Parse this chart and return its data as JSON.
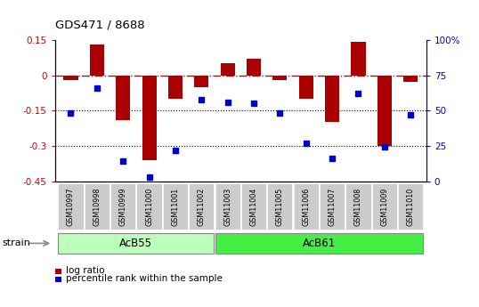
{
  "title": "GDS471 / 8688",
  "samples": [
    "GSM10997",
    "GSM10998",
    "GSM10999",
    "GSM11000",
    "GSM11001",
    "GSM11002",
    "GSM11003",
    "GSM11004",
    "GSM11005",
    "GSM11006",
    "GSM11007",
    "GSM11008",
    "GSM11009",
    "GSM11010"
  ],
  "log_ratio": [
    -0.02,
    0.13,
    -0.19,
    -0.36,
    -0.1,
    -0.05,
    0.05,
    0.07,
    -0.02,
    -0.1,
    -0.2,
    0.14,
    -0.3,
    -0.03
  ],
  "percentile": [
    48,
    66,
    14,
    3,
    22,
    58,
    56,
    55,
    48,
    27,
    16,
    62,
    24,
    47
  ],
  "ylim_left": [
    -0.45,
    0.15
  ],
  "ylim_right": [
    0,
    100
  ],
  "group1_label": "AcB55",
  "group1_count": 6,
  "group2_label": "AcB61",
  "group2_count": 8,
  "strain_label": "strain",
  "bar_color": "#aa0000",
  "dot_color": "#0000cc",
  "hline_color": "#cc0000",
  "dotline_color": "#000000",
  "right_axis_color": "#0000cc",
  "left_axis_color": "#cc0000",
  "group1_color": "#bbffbb",
  "group2_color": "#44ee44",
  "tick_label_bg": "#cccccc",
  "legend_bar_label": "log ratio",
  "legend_dot_label": "percentile rank within the sample",
  "left_yticks": [
    -0.45,
    -0.3,
    -0.15,
    0.0,
    0.15
  ],
  "left_yticklabels": [
    "-0.45",
    "-0.3",
    "-0.15",
    "0",
    "0.15"
  ],
  "right_yticks": [
    0,
    25,
    50,
    75,
    100
  ],
  "right_yticklabels": [
    "0",
    "25",
    "50",
    "75",
    "100%"
  ]
}
